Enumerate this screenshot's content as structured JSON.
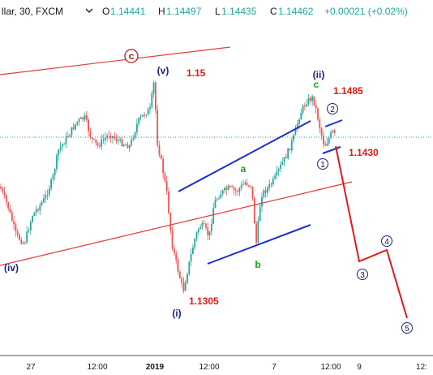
{
  "header": {
    "symbol": "llar, 30, FXCM",
    "o_label": "O",
    "o_value": "1.14441",
    "h_label": "H",
    "h_value": "1.14497",
    "l_label": "L",
    "l_value": "1.14435",
    "c_label": "C",
    "c_value": "1.14462",
    "change": "+0.00021 (+0.02%)",
    "dropdown_icon": "chevron-down-icon"
  },
  "colors": {
    "up": "#26a69a",
    "down": "#ef5350",
    "channel_red": "#e53935",
    "channel_blue": "#1f2ecc",
    "wave_red": "#e01919",
    "navy": "#1a237e",
    "green": "#13a113",
    "price_line": "#26a69a"
  },
  "chart_data": {
    "type": "candlestick",
    "title": "",
    "x_ticks": [
      "27",
      "12:00",
      "2019",
      "12:00",
      "7",
      "12:00",
      "9",
      "12:"
    ],
    "price_levels": [
      "1.15",
      "1.1485",
      "1.1430",
      "1.1305"
    ],
    "last_price": 1.14462,
    "wave_labels": {
      "iv": "(iv)",
      "v": "(v)",
      "i": "(i)",
      "ii": "(ii)",
      "a": "a",
      "b": "b",
      "c": "c",
      "c_circle": "c",
      "n1": "1",
      "n2": "2",
      "n3": "3",
      "n4": "4",
      "n5": "5"
    },
    "projection_path": [
      {
        "label": "1.1430",
        "price": 1.143
      },
      {
        "label": "3",
        "price": 1.1355
      },
      {
        "label": "4",
        "price": 1.137
      },
      {
        "label": "5",
        "price": 1.1265
      }
    ]
  }
}
